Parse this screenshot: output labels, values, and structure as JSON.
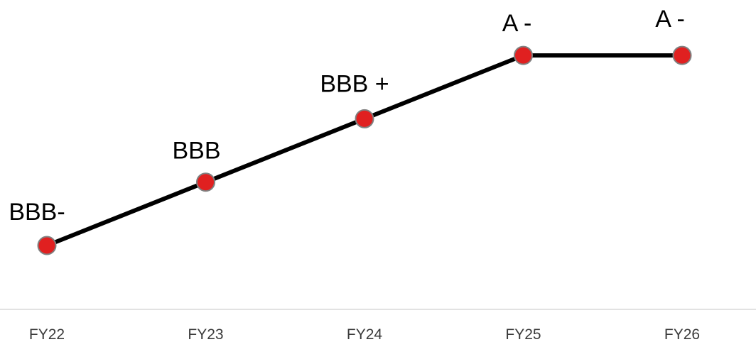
{
  "chart_data": {
    "type": "line",
    "categories": [
      "FY22",
      "FY23",
      "FY24",
      "FY25",
      "FY26"
    ],
    "rating_scale": [
      "BBB-",
      "BBB",
      "BBB+",
      "A-"
    ],
    "values": [
      0,
      1,
      2,
      3,
      3
    ],
    "point_labels": [
      "BBB-",
      "BBB",
      "BBB +",
      "A -",
      "A -"
    ],
    "title": "",
    "xlabel": "",
    "ylabel": "",
    "grid": false,
    "legend": "none",
    "colors": {
      "line": "#000000",
      "marker_fill": "#e02020",
      "marker_stroke": "#808080",
      "axis": "#d9d9d9",
      "tick_text": "#3a3a3a"
    }
  }
}
